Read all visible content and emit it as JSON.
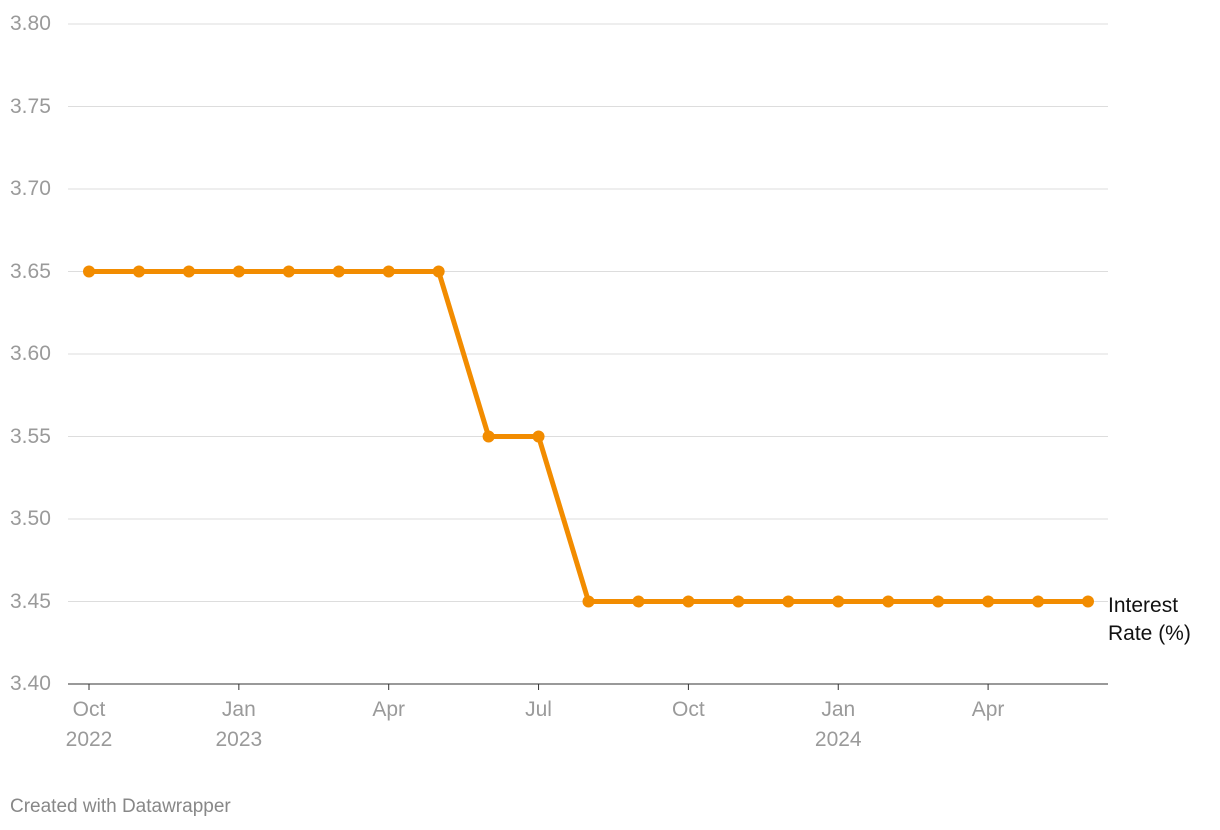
{
  "chart_data": {
    "type": "line",
    "x": [
      "2022-10",
      "2022-11",
      "2022-12",
      "2023-01",
      "2023-02",
      "2023-03",
      "2023-04",
      "2023-05",
      "2023-06",
      "2023-07",
      "2023-08",
      "2023-09",
      "2023-10",
      "2023-11",
      "2023-12",
      "2024-01",
      "2024-02",
      "2024-03",
      "2024-04",
      "2024-05",
      "2024-06"
    ],
    "series": [
      {
        "name": "Interest Rate (%)",
        "color": "#f28c00",
        "values": [
          3.65,
          3.65,
          3.65,
          3.65,
          3.65,
          3.65,
          3.65,
          3.65,
          3.55,
          3.55,
          3.45,
          3.45,
          3.45,
          3.45,
          3.45,
          3.45,
          3.45,
          3.45,
          3.45,
          3.45,
          3.45
        ]
      }
    ],
    "xlim": [
      "2022-10",
      "2024-06"
    ],
    "xticks": [
      {
        "value": "2022-10",
        "label": "Oct 2022"
      },
      {
        "value": "2023-01",
        "label": "Jan 2023"
      },
      {
        "value": "2023-04",
        "label": "Apr"
      },
      {
        "value": "2023-07",
        "label": "Jul"
      },
      {
        "value": "2023-10",
        "label": "Oct"
      },
      {
        "value": "2024-01",
        "label": "Jan 2024"
      },
      {
        "value": "2024-04",
        "label": "Apr"
      }
    ],
    "ylim": [
      3.4,
      3.8
    ],
    "yticks": [
      {
        "value": 3.4,
        "label": "3.40"
      },
      {
        "value": 3.45,
        "label": "3.45"
      },
      {
        "value": 3.5,
        "label": "3.50"
      },
      {
        "value": 3.55,
        "label": "3.55"
      },
      {
        "value": 3.6,
        "label": "3.60"
      },
      {
        "value": 3.65,
        "label": "3.65"
      },
      {
        "value": 3.7,
        "label": "3.70"
      },
      {
        "value": 3.75,
        "label": "3.75"
      },
      {
        "value": 3.8,
        "label": "3.80"
      }
    ],
    "grid": true,
    "footer": "Created with Datawrapper"
  }
}
